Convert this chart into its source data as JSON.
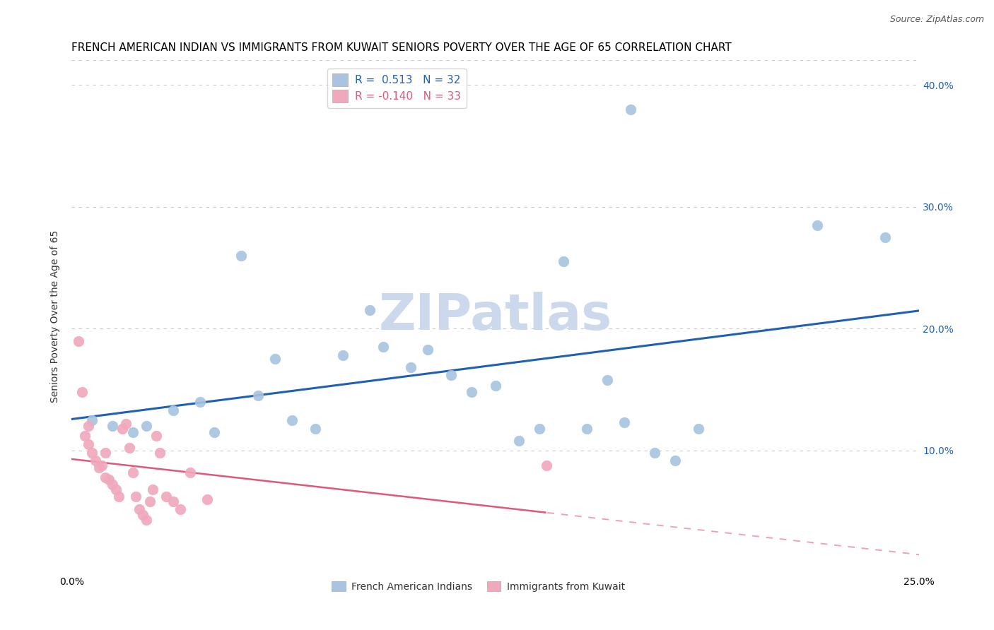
{
  "title": "FRENCH AMERICAN INDIAN VS IMMIGRANTS FROM KUWAIT SENIORS POVERTY OVER THE AGE OF 65 CORRELATION CHART",
  "source": "Source: ZipAtlas.com",
  "ylabel": "Seniors Poverty Over the Age of 65",
  "xlim": [
    0.0,
    0.25
  ],
  "ylim": [
    0.0,
    0.42
  ],
  "xticks": [
    0.0,
    0.05,
    0.1,
    0.15,
    0.2,
    0.25
  ],
  "yticks": [
    0.0,
    0.1,
    0.2,
    0.3,
    0.4
  ],
  "ytick_labels_right": [
    "",
    "10.0%",
    "20.0%",
    "30.0%",
    "40.0%"
  ],
  "xtick_labels": [
    "0.0%",
    "",
    "",
    "",
    "",
    "25.0%"
  ],
  "legend_labels": [
    "French American Indians",
    "Immigrants from Kuwait"
  ],
  "R_blue": 0.513,
  "N_blue": 32,
  "R_pink": -0.14,
  "N_pink": 33,
  "blue_scatter_x": [
    0.006,
    0.012,
    0.018,
    0.022,
    0.03,
    0.038,
    0.042,
    0.05,
    0.055,
    0.06,
    0.065,
    0.072,
    0.08,
    0.088,
    0.092,
    0.1,
    0.105,
    0.112,
    0.118,
    0.125,
    0.132,
    0.138,
    0.145,
    0.152,
    0.158,
    0.163,
    0.165,
    0.172,
    0.178,
    0.185,
    0.22,
    0.24
  ],
  "blue_scatter_y": [
    0.125,
    0.12,
    0.115,
    0.12,
    0.133,
    0.14,
    0.115,
    0.26,
    0.145,
    0.175,
    0.125,
    0.118,
    0.178,
    0.215,
    0.185,
    0.168,
    0.183,
    0.162,
    0.148,
    0.153,
    0.108,
    0.118,
    0.255,
    0.118,
    0.158,
    0.123,
    0.38,
    0.098,
    0.092,
    0.118,
    0.285,
    0.275
  ],
  "pink_scatter_x": [
    0.002,
    0.003,
    0.004,
    0.005,
    0.005,
    0.006,
    0.007,
    0.008,
    0.009,
    0.01,
    0.01,
    0.011,
    0.012,
    0.013,
    0.014,
    0.015,
    0.016,
    0.017,
    0.018,
    0.019,
    0.02,
    0.021,
    0.022,
    0.023,
    0.024,
    0.025,
    0.026,
    0.028,
    0.03,
    0.032,
    0.035,
    0.04,
    0.14
  ],
  "pink_scatter_y": [
    0.19,
    0.148,
    0.112,
    0.12,
    0.105,
    0.098,
    0.092,
    0.086,
    0.088,
    0.098,
    0.078,
    0.076,
    0.072,
    0.068,
    0.062,
    0.118,
    0.122,
    0.102,
    0.082,
    0.062,
    0.052,
    0.047,
    0.043,
    0.058,
    0.068,
    0.112,
    0.098,
    0.062,
    0.058,
    0.052,
    0.082,
    0.06,
    0.088
  ],
  "blue_color": "#a8c4e0",
  "pink_color": "#f0a8bc",
  "blue_line_color": "#2060b0",
  "pink_line_color": "#e05878",
  "background_color": "#ffffff",
  "grid_color": "#c8c8c8",
  "title_fontsize": 11,
  "axis_label_fontsize": 10,
  "tick_fontsize": 10,
  "source_fontsize": 9,
  "watermark_text": "ZIPatlas",
  "watermark_color": "#ccd8ec",
  "watermark_fontsize": 52
}
